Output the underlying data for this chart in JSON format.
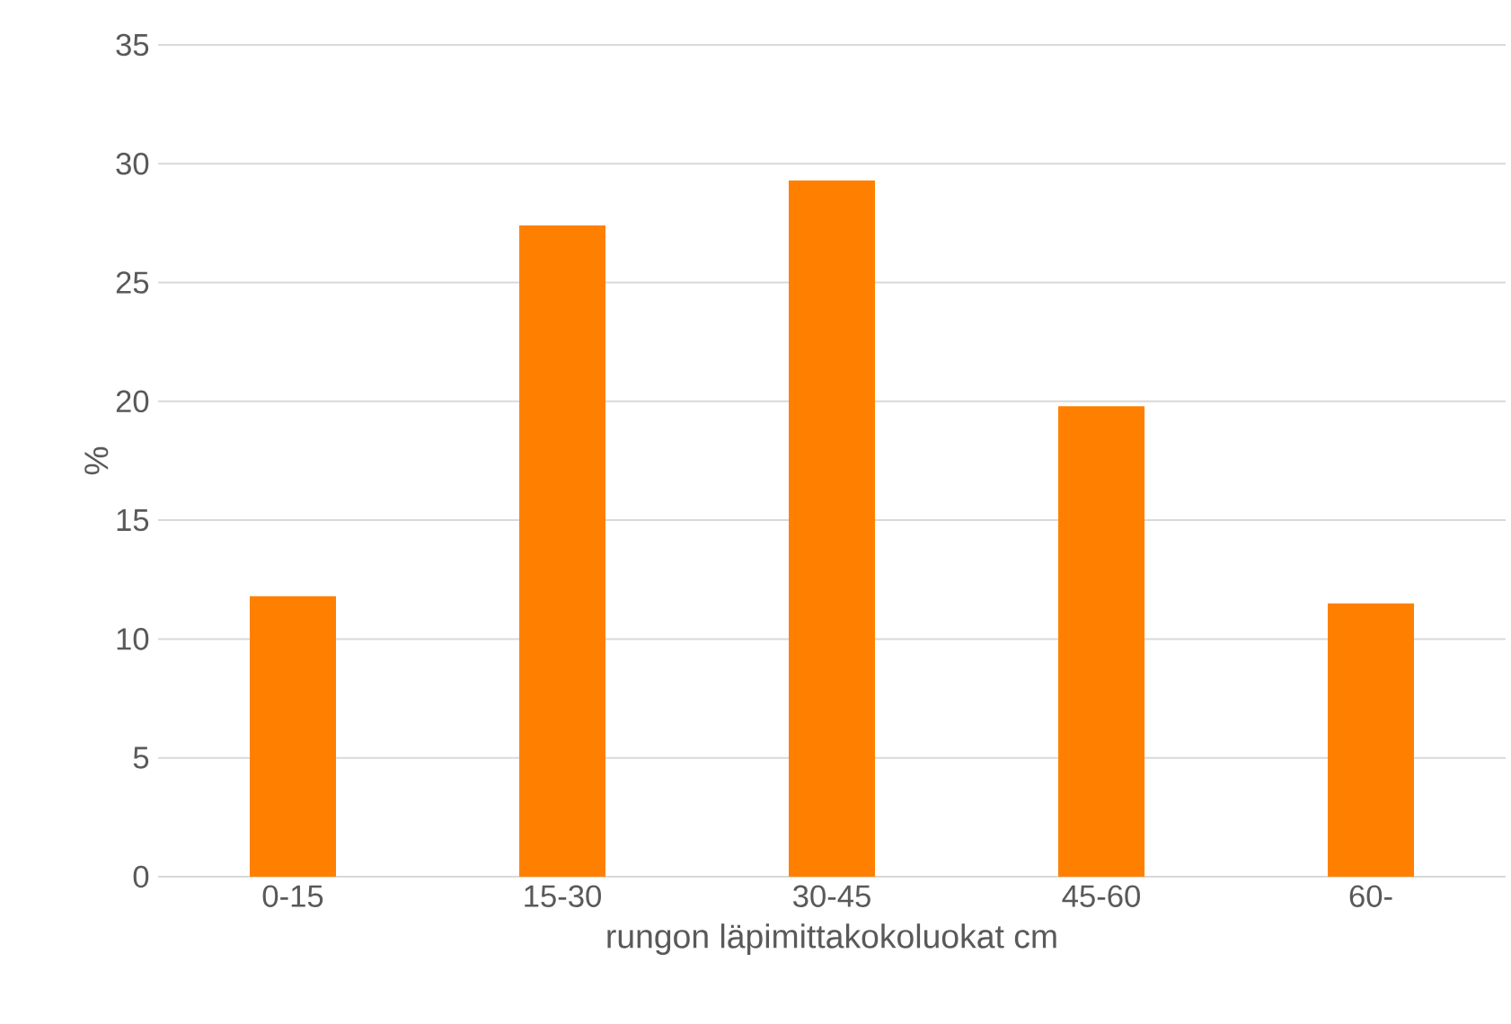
{
  "chart_data": {
    "type": "bar",
    "xlabel": "rungon läpimittakokoluokat cm",
    "ylabel": "%",
    "categories": [
      "0-15",
      "15-30",
      "30-45",
      "45-60",
      "60-"
    ],
    "values": [
      11.8,
      27.4,
      29.3,
      19.8,
      11.5
    ],
    "color": "#ff8000",
    "ylim": [
      0,
      35
    ],
    "yticks": [
      0,
      5,
      10,
      15,
      20,
      25,
      30,
      35
    ],
    "grid": "y"
  }
}
